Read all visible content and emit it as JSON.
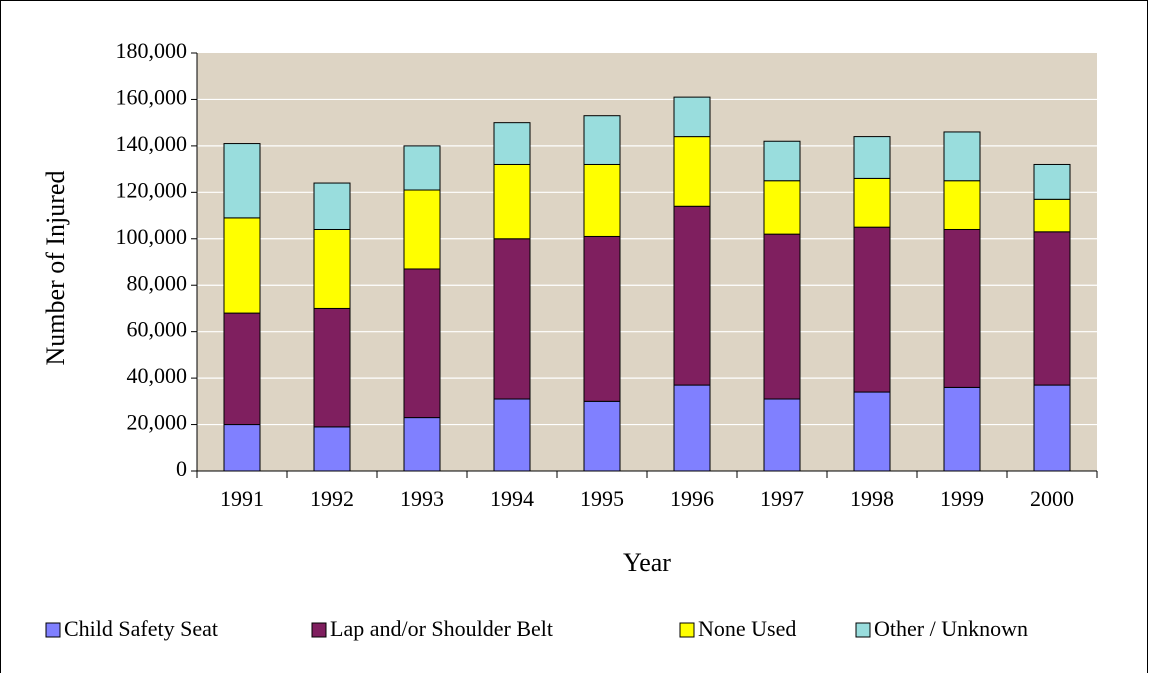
{
  "chart_data": {
    "type": "stacked_bar",
    "x_label": "Year",
    "y_label": "Number of Injured",
    "categories": [
      "1991",
      "1992",
      "1993",
      "1994",
      "1995",
      "1996",
      "1997",
      "1998",
      "1999",
      "2000"
    ],
    "series": [
      {
        "name": "Child Safety Seat",
        "color": "#8080ff",
        "values": [
          20000,
          19000,
          23000,
          31000,
          30000,
          37000,
          31000,
          34000,
          36000,
          37000
        ]
      },
      {
        "name": "Lap and/or Shoulder Belt",
        "color": "#7f1f5f",
        "values": [
          48000,
          51000,
          64000,
          69000,
          71000,
          77000,
          71000,
          71000,
          68000,
          66000
        ]
      },
      {
        "name": "None Used",
        "color": "#ffff00",
        "values": [
          41000,
          34000,
          34000,
          32000,
          31000,
          30000,
          23000,
          21000,
          21000,
          14000
        ]
      },
      {
        "name": "Other / Unknown",
        "color": "#99dddd",
        "values": [
          32000,
          20000,
          19000,
          18000,
          21000,
          17000,
          17000,
          18000,
          21000,
          15000
        ]
      }
    ],
    "ylim": [
      0,
      180000
    ],
    "yticks": [
      0,
      {
        "value": 20000,
        "label": "20,000"
      },
      {
        "value": 40000,
        "label": "40,000"
      },
      {
        "value": 60000,
        "label": "60,000"
      },
      {
        "value": 80000,
        "label": "80,000"
      },
      {
        "value": 100000,
        "label": "100,000"
      },
      {
        "value": 120000,
        "label": "120,000"
      },
      {
        "value": 140000,
        "label": "140,000"
      },
      {
        "value": 160000,
        "label": "160,000"
      },
      {
        "value": 180000,
        "label": "180,000"
      }
    ],
    "grid": true,
    "legend": "bottom"
  }
}
